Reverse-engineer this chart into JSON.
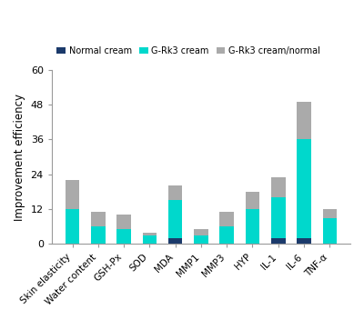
{
  "categories": [
    "Skin elasticity",
    "Water content",
    "GSH-Px",
    "SOD",
    "MDA",
    "MMP1",
    "MMP3",
    "HYP",
    "IL-1",
    "IL-6",
    "TNF-α"
  ],
  "normal_cream": [
    0,
    0,
    0,
    0,
    2,
    0,
    0,
    0,
    2,
    2,
    0
  ],
  "grk3_cream": [
    12,
    6,
    5,
    3,
    13,
    3,
    6,
    12,
    14,
    34,
    9
  ],
  "grk3_normal": [
    10,
    5,
    5,
    1,
    5,
    2,
    5,
    6,
    7,
    13,
    3
  ],
  "colors": {
    "normal_cream": "#1b3a6b",
    "grk3_cream": "#00d8cc",
    "grk3_normal": "#aaaaaa"
  },
  "legend_labels": [
    "Normal cream",
    "G-Rk3 cream",
    "G-Rk3 cream/normal"
  ],
  "ylabel": "Improvement efficiency",
  "ylim": [
    0,
    60
  ],
  "yticks": [
    0,
    12,
    24,
    36,
    48,
    60
  ],
  "bar_width": 0.55,
  "background_color": "#ffffff",
  "figsize": [
    4.0,
    3.52
  ],
  "dpi": 100
}
